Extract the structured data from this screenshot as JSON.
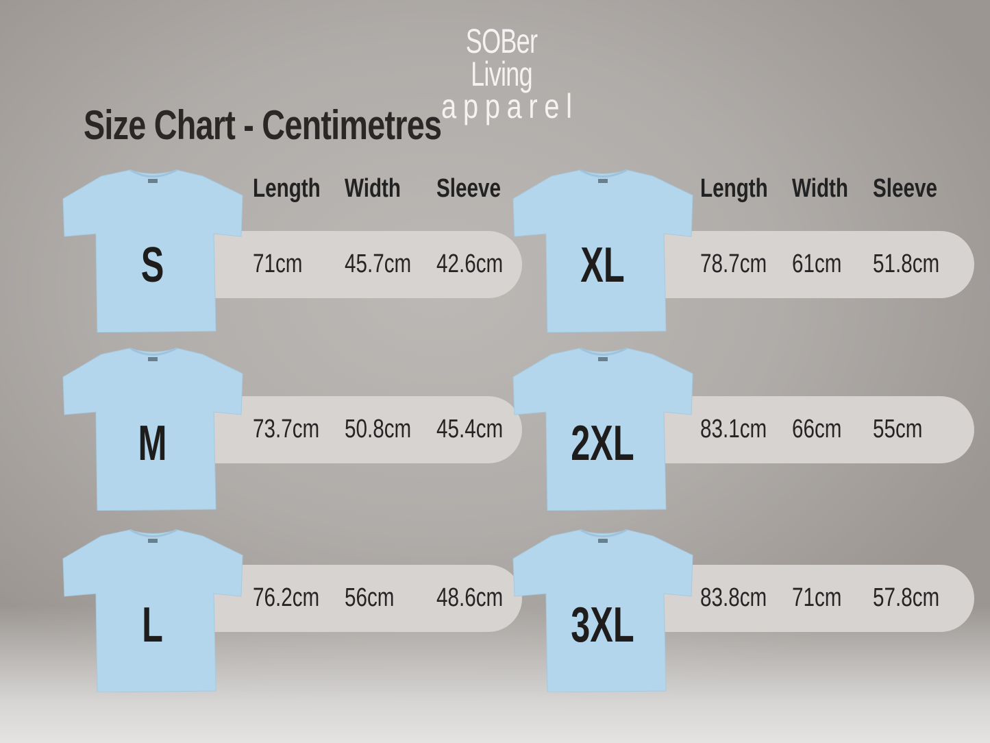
{
  "logo": {
    "line1": "SOBer Living",
    "line2": "apparel",
    "color": "#f4f3f2"
  },
  "title": "Size Chart - Centimetres",
  "headers": [
    "Length",
    "Width",
    "Sleeve"
  ],
  "shirt_color": "#b3d6ec",
  "sizes": [
    {
      "label": "S",
      "length": "71cm",
      "width": "45.7cm",
      "sleeve": "42.6cm"
    },
    {
      "label": "M",
      "length": "73.7cm",
      "width": "50.8cm",
      "sleeve": "45.4cm"
    },
    {
      "label": "L",
      "length": "76.2cm",
      "width": "56cm",
      "sleeve": "48.6cm"
    },
    {
      "label": "XL",
      "length": "78.7cm",
      "width": "61cm",
      "sleeve": "51.8cm"
    },
    {
      "label": "2XL",
      "length": "83.1cm",
      "width": "66cm",
      "sleeve": "55cm"
    },
    {
      "label": "3XL",
      "length": "83.8cm",
      "width": "71cm",
      "sleeve": "57.8cm"
    }
  ]
}
